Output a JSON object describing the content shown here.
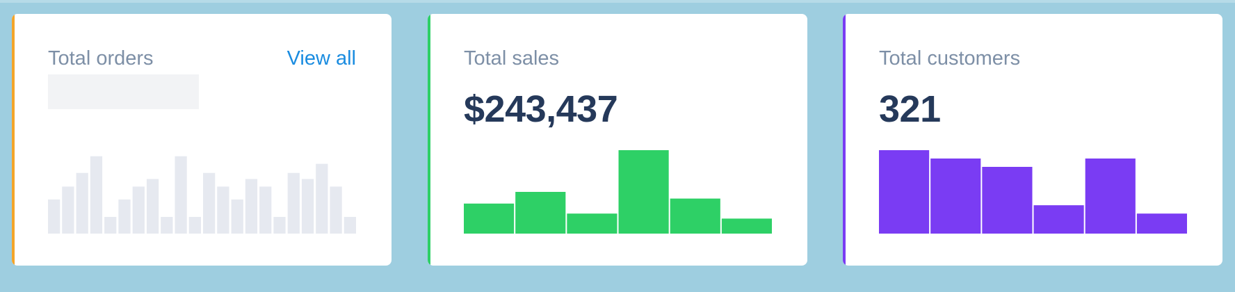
{
  "colors": {
    "background": "#9ecee0",
    "orders_accent": "#f4a52a",
    "sales_accent": "#2ed066",
    "customers_accent": "#7a3cf3",
    "placeholder_bar": "#e6e9f0",
    "title": "#7d8fa6",
    "value": "#25395a",
    "link": "#1a8ce0"
  },
  "cards": {
    "orders": {
      "title": "Total orders",
      "link": "View all"
    },
    "sales": {
      "title": "Total sales",
      "value": "$243,437"
    },
    "customers": {
      "title": "Total customers",
      "value": "321"
    }
  },
  "chart_data": [
    {
      "type": "bar",
      "series": [
        {
          "values": [
            45,
            62,
            80,
            102,
            22,
            45,
            62,
            72,
            22,
            102,
            22,
            80,
            62,
            45,
            72,
            62,
            22,
            80,
            72,
            92,
            62,
            22
          ]
        }
      ],
      "ylim": [
        0,
        110
      ]
    },
    {
      "type": "bar",
      "series": [
        {
          "values": [
            36,
            50,
            24,
            100,
            42,
            18
          ]
        }
      ],
      "ylim": [
        0,
        100
      ]
    },
    {
      "type": "bar",
      "series": [
        {
          "values": [
            100,
            90,
            80,
            34,
            90,
            24
          ]
        }
      ],
      "ylim": [
        0,
        100
      ]
    }
  ]
}
